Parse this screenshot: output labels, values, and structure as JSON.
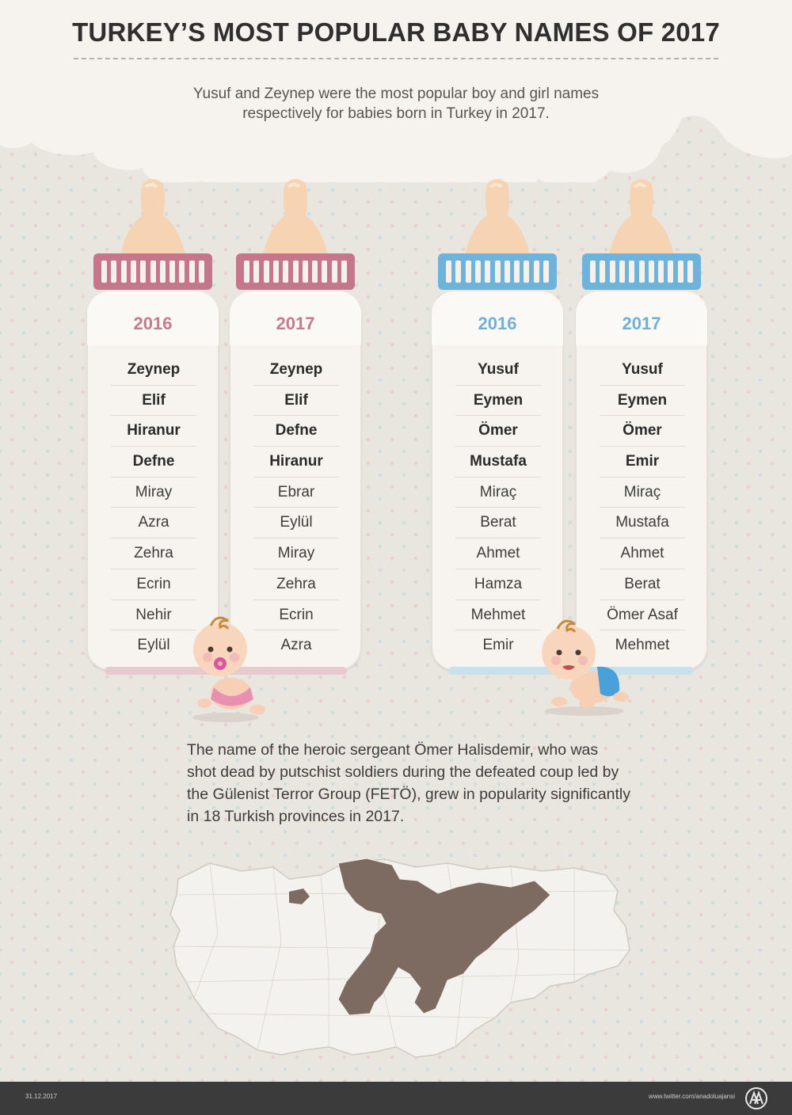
{
  "title": "TURKEY’S MOST POPULAR BABY NAMES OF 2017",
  "subtitle": "Yusuf and Zeynep were the most popular boy and girl names respectively for babies born in Turkey in 2017.",
  "colors": {
    "pink": "#c6768a",
    "blue": "#6db3dc",
    "pink_year": "#c57a91",
    "blue_year": "#6fb0d8",
    "map_highlight": "#7d6b61"
  },
  "bottles": [
    {
      "gender": "girl",
      "year": "2016",
      "names": [
        "Zeynep",
        "Elif",
        "Hiranur",
        "Defne",
        "Miray",
        "Azra",
        "Zehra",
        "Ecrin",
        "Nehir",
        "Eylül"
      ]
    },
    {
      "gender": "girl",
      "year": "2017",
      "names": [
        "Zeynep",
        "Elif",
        "Defne",
        "Hiranur",
        "Ebrar",
        "Eylül",
        "Miray",
        "Zehra",
        "Ecrin",
        "Azra"
      ]
    },
    {
      "gender": "boy",
      "year": "2016",
      "names": [
        "Yusuf",
        "Eymen",
        "Ömer",
        "Mustafa",
        "Miraç",
        "Berat",
        "Ahmet",
        "Hamza",
        "Mehmet",
        "Emir"
      ]
    },
    {
      "gender": "boy",
      "year": "2017",
      "names": [
        "Yusuf",
        "Eymen",
        "Ömer",
        "Emir",
        "Miraç",
        "Mustafa",
        "Ahmet",
        "Berat",
        "Ömer Asaf",
        "Mehmet"
      ]
    }
  ],
  "note": "The name of the heroic sergeant Ömer Halisdemir, who was shot dead by putschist soldiers during the defeated coup led by the Gülenist Terror Group (FETÖ), grew in popularity significantly in 18 Turkish provinces in 2017.",
  "footer": {
    "date": "31.12.2017",
    "twitter": "www.twitter.com/anadoluajansi",
    "logo_icon": "anadolu-agency-logo-icon"
  }
}
